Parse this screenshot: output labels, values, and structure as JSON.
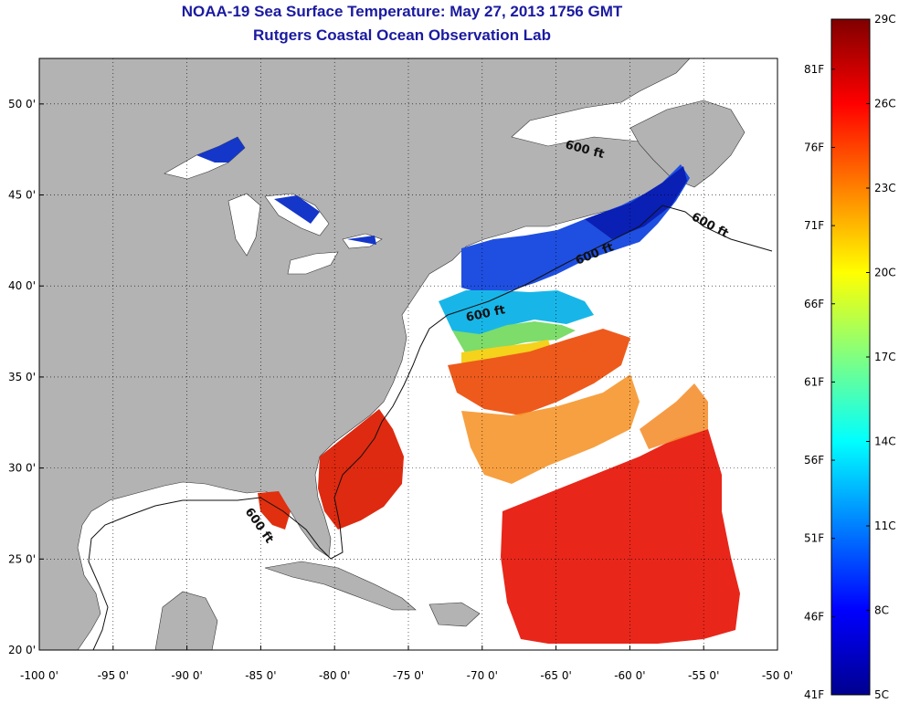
{
  "title": "NOAA-19 Sea Surface Temperature:  May 27, 2013 1756 GMT",
  "subtitle": "Rutgers Coastal Ocean Observation Lab",
  "map": {
    "lon_range": [
      -100,
      -50
    ],
    "lat_range": [
      20,
      52.5
    ],
    "lon_ticks": [
      "-100 0'",
      "-95 0'",
      "-90 0'",
      "-85 0'",
      "-80 0'",
      "-75 0'",
      "-70 0'",
      "-65 0'",
      "-60 0'",
      "-55 0'",
      "-50 0'"
    ],
    "lat_ticks": [
      "20 0'",
      "25 0'",
      "30 0'",
      "35 0'",
      "40 0'",
      "45 0'",
      "50 0'"
    ],
    "grid": true,
    "land_color": "#b3b3b3",
    "no_data_color": "#ffffff",
    "contour_labels": [
      "600 ft",
      "600 ft",
      "600 ft",
      "600 ft",
      "600 ft"
    ]
  },
  "colorbar": {
    "celsius_labels": [
      "29C",
      "26C",
      "23C",
      "20C",
      "17C",
      "14C",
      "11C",
      "8C",
      "5C"
    ],
    "fahrenheit_labels": [
      "81F",
      "76F",
      "71F",
      "66F",
      "61F",
      "56F",
      "51F",
      "46F",
      "41F"
    ],
    "range_c": [
      5,
      29
    ],
    "colors": [
      "#00008f",
      "#0000ff",
      "#0080ff",
      "#00ffff",
      "#80ff80",
      "#ffff00",
      "#ff8000",
      "#ff0000",
      "#800000"
    ]
  }
}
